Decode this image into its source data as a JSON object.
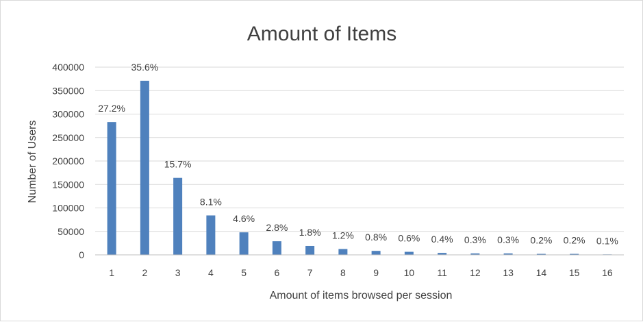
{
  "chart_data": {
    "type": "bar",
    "title": "Amount of Items",
    "xlabel": "Amount of items browsed per session",
    "ylabel": "Number of Users",
    "categories": [
      "1",
      "2",
      "3",
      "4",
      "5",
      "6",
      "7",
      "8",
      "9",
      "10",
      "11",
      "12",
      "13",
      "14",
      "15",
      "16"
    ],
    "values": [
      283000,
      371000,
      164000,
      84000,
      48000,
      29000,
      19000,
      12500,
      8500,
      6500,
      4200,
      3100,
      3100,
      2100,
      2100,
      1000
    ],
    "data_labels": [
      "27.2%",
      "35.6%",
      "15.7%",
      "8.1%",
      "4.6%",
      "2.8%",
      "1.8%",
      "1.2%",
      "0.8%",
      "0.6%",
      "0.4%",
      "0.3%",
      "0.3%",
      "0.2%",
      "0.2%",
      "0.1%"
    ],
    "ylim": [
      0,
      400000
    ],
    "yticks": [
      "0",
      "50000",
      "100000",
      "150000",
      "200000",
      "250000",
      "300000",
      "350000",
      "400000"
    ],
    "grid": true,
    "bar_color": "#4f81bd"
  }
}
